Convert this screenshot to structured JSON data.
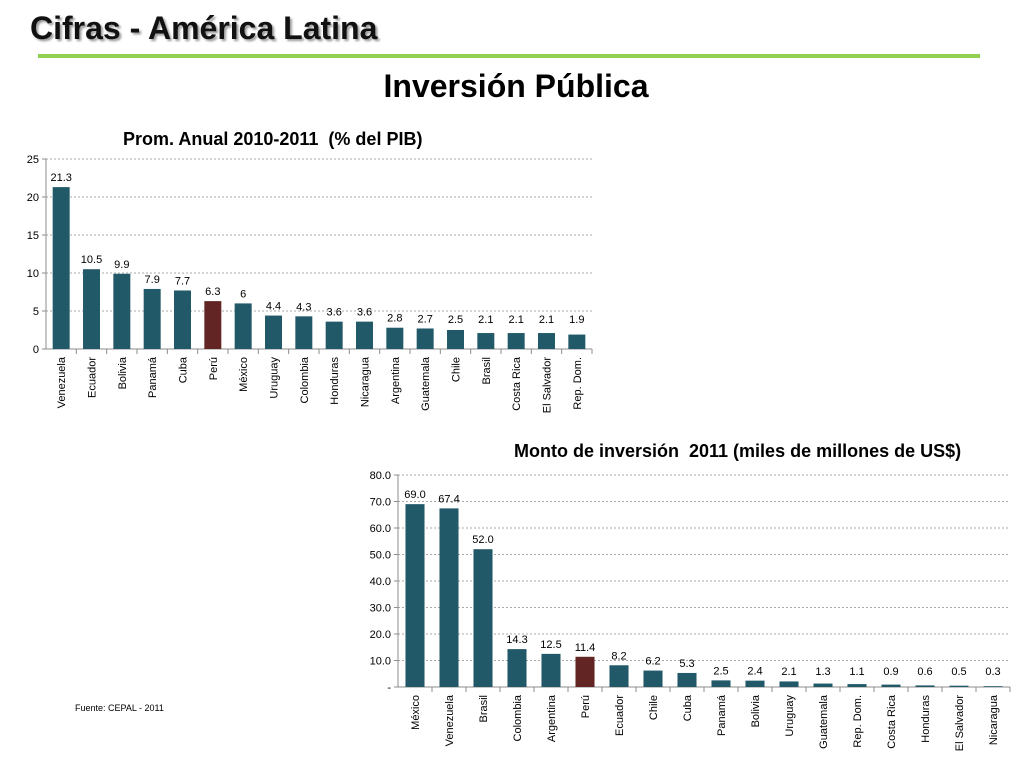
{
  "slide": {
    "title": "Cifras - América Latina",
    "main_title": "Inversión Pública",
    "source": "Fuente: CEPAL - 2011"
  },
  "colors": {
    "bar": "#215968",
    "highlight": "#632523",
    "accent_rule": "#92d050"
  },
  "chart_data": [
    {
      "type": "bar",
      "title": "Prom. Anual 2010-2011  (% del PIB)",
      "categories": [
        "Venezuela",
        "Ecuador",
        "Bolivia",
        "Panamá",
        "Cuba",
        "Perú",
        "México",
        "Uruguay",
        "Colombia",
        "Honduras",
        "Nicaragua",
        "Argentina",
        "Guatemala",
        "Chile",
        "Brasil",
        "Costa Rica",
        "El Salvador",
        "Rep. Dom."
      ],
      "values": [
        21.3,
        10.5,
        9.9,
        7.9,
        7.7,
        6.3,
        6,
        4.4,
        4.3,
        3.6,
        3.6,
        2.8,
        2.7,
        2.5,
        2.1,
        2.1,
        2.1,
        1.9
      ],
      "value_labels": [
        "21.3",
        "10.5",
        "9.9",
        "7.9",
        "7.7",
        "6.3",
        "6",
        "4.4",
        "4.3",
        "3.6",
        "3.6",
        "2.8",
        "2.7",
        "2.5",
        "2.1",
        "2.1",
        "2.1",
        "1.9"
      ],
      "highlight": "Perú",
      "ylim": [
        0,
        25
      ],
      "yticks": [
        0,
        5,
        10,
        15,
        20,
        25
      ],
      "ytick_labels": [
        "0",
        "5",
        "10",
        "15",
        "20",
        "25"
      ],
      "grid": true
    },
    {
      "type": "bar",
      "title": "Monto de inversión  2011 (miles de millones de US$)",
      "categories": [
        "México",
        "Venezuela",
        "Brasil",
        "Colombia",
        "Argentina",
        "Perú",
        "Ecuador",
        "Chile",
        "Cuba",
        "Panamá",
        "Bolivia",
        "Uruguay",
        "Guatemala",
        "Rep. Dom.",
        "Costa Rica",
        "Honduras",
        "El Salvador",
        "Nicaragua"
      ],
      "values": [
        69.0,
        67.4,
        52.0,
        14.3,
        12.5,
        11.4,
        8.2,
        6.2,
        5.3,
        2.5,
        2.4,
        2.1,
        1.3,
        1.1,
        0.9,
        0.6,
        0.5,
        0.3
      ],
      "value_labels": [
        "69.0",
        "67.4",
        "52.0",
        "14.3",
        "12.5",
        "11.4",
        "8.2",
        "6.2",
        "5.3",
        "2.5",
        "2.4",
        "2.1",
        "1.3",
        "1.1",
        "0.9",
        "0.6",
        "0.5",
        "0.3"
      ],
      "highlight": "Perú",
      "ylim": [
        0,
        80
      ],
      "yticks": [
        0,
        10,
        20,
        30,
        40,
        50,
        60,
        70,
        80
      ],
      "ytick_labels": [
        "-",
        "10.0",
        "20.0",
        "30.0",
        "40.0",
        "50.0",
        "60.0",
        "70.0",
        "80.0"
      ],
      "grid": true
    }
  ]
}
